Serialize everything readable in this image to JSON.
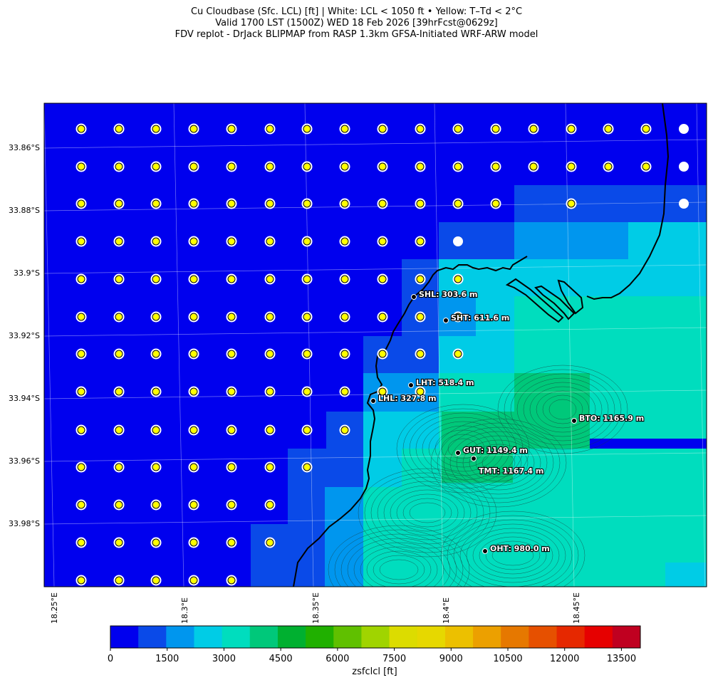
{
  "title": {
    "line1": "Cu Cloudbase (Sfc. LCL) [ft]  |  White: LCL < 1050 ft • Yellow: T–Td < 2°C",
    "line2": "Valid 1700 LST (1500Z) WED 18 Feb 2026 [39hrFcst@0629z]",
    "line3": "FDV replot - DrJack BLIPMAP from RASP 1.3km GFSA-Initiated WRF-ARW model"
  },
  "axes": {
    "x_ticks": [
      "18.25°E",
      "18.3°E",
      "18.35°E",
      "18.4°E",
      "18.45°E"
    ],
    "y_ticks": [
      "33.86°S",
      "33.88°S",
      "33.9°S",
      "33.92°S",
      "33.94°S",
      "33.96°S",
      "33.98°S"
    ]
  },
  "stations": [
    {
      "name": "SHL: 303.6 m",
      "label": "SHL: 303.6 m"
    },
    {
      "name": "SHT: 611.6 m",
      "label": "SHT: 611.6 m"
    },
    {
      "name": "LHT: 518.4 m",
      "label": "LHT: 518.4 m"
    },
    {
      "name": "LHL: 327.8 m",
      "label": "LHL: 327.8 m"
    },
    {
      "name": "BTO: 1165.9 m",
      "label": "BTO: 1165.9 m"
    },
    {
      "name": "GUT: 1149.4 m",
      "label": "GUT: 1149.4 m"
    },
    {
      "name": "TMT: 1167.4 m",
      "label": "TMT: 1167.4 m"
    },
    {
      "name": "OHT: 980.0 m",
      "label": "OHT: 980.0 m"
    }
  ],
  "colorbar": {
    "label": "zsfclcl [ft]",
    "ticks": [
      "0",
      "1500",
      "3000",
      "4500",
      "6000",
      "7500",
      "9000",
      "10500",
      "12000",
      "13500"
    ],
    "colors": [
      "#0000ee",
      "#0a4ae8",
      "#0096ee",
      "#00cce6",
      "#00ddbe",
      "#00c87a",
      "#00b030",
      "#20b000",
      "#60c000",
      "#a0d400",
      "#dcdc00",
      "#e6d800",
      "#ecc000",
      "#eca000",
      "#e67800",
      "#e65000",
      "#e62800",
      "#e60000",
      "#c00020"
    ]
  },
  "legend_colors": {
    "white_marker": "#ffffff",
    "yellow_marker": "#ffff00"
  }
}
